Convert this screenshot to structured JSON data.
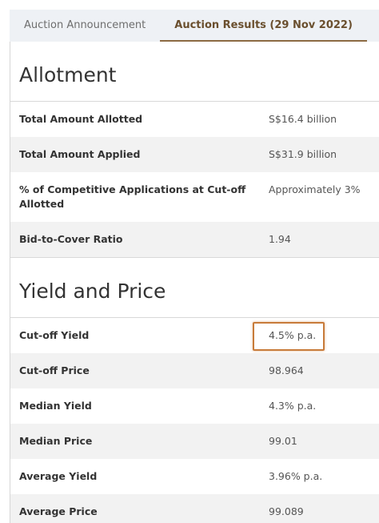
{
  "tabs": [
    "Auction Announcement",
    "Auction Results (29 Nov 2022)"
  ],
  "sections": [
    {
      "title": "Allotment",
      "rows": [
        [
          "Total Amount Allotted",
          "S$16.4 billion"
        ],
        [
          "Total Amount Applied",
          "S$31.9 billion"
        ],
        [
          "% of Competitive Applications at Cut-off Allotted",
          "Approximately 3%"
        ],
        [
          "Bid-to-Cover Ratio",
          "1.94"
        ]
      ]
    },
    {
      "title": "Yield and Price",
      "rows": [
        [
          "Cut-off Yield",
          "4.5% p.a."
        ],
        [
          "Cut-off Price",
          "98.964"
        ],
        [
          "Median Yield",
          "4.3% p.a."
        ],
        [
          "Median Price",
          "99.01"
        ],
        [
          "Average Yield",
          "3.96% p.a."
        ],
        [
          "Average Price",
          "99.089"
        ]
      ]
    }
  ]
}
